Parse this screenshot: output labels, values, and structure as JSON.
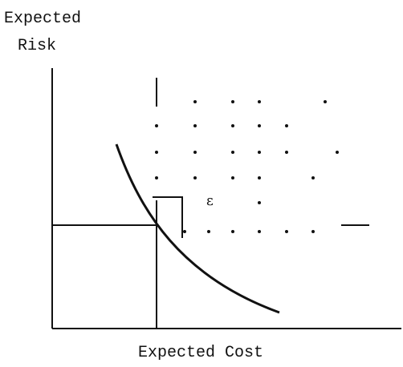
{
  "y_axis_label": [
    "Expected",
    "Risk"
  ],
  "x_axis_label": "Expected Cost",
  "epsilon_label": "ε"
}
